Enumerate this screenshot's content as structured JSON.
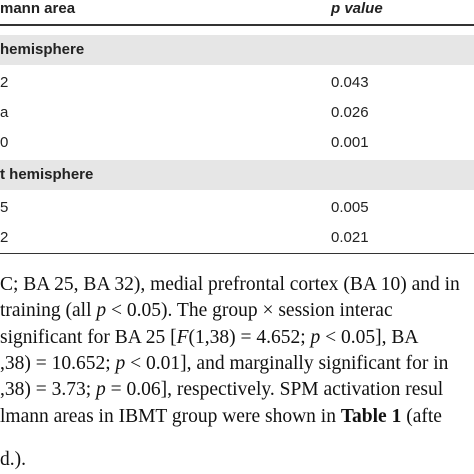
{
  "table": {
    "header": [
      "mann area",
      "p value"
    ],
    "sections": [
      {
        "title": "hemisphere",
        "rows": [
          [
            "2",
            "0.043"
          ],
          [
            "a",
            "0.026"
          ],
          [
            "0",
            "0.001"
          ]
        ]
      },
      {
        "title": "t hemisphere",
        "rows": [
          [
            "5",
            "0.005"
          ],
          [
            "2",
            "0.021"
          ]
        ]
      }
    ]
  },
  "paragraph": {
    "lines": [
      [
        {
          "text": "C; BA 25, BA 32), medial prefrontal cortex (BA 10) and in",
          "style": "normal"
        }
      ],
      [
        {
          "text": " training (all ",
          "style": "normal"
        },
        {
          "text": "p",
          "style": "italic"
        },
        {
          "text": " < 0.05). The group × session interac",
          "style": "normal"
        }
      ],
      [
        {
          "text": "significant for BA 25 [",
          "style": "normal"
        },
        {
          "text": "F",
          "style": "italic"
        },
        {
          "text": "(1,38) = 4.652; ",
          "style": "normal"
        },
        {
          "text": "p",
          "style": "italic"
        },
        {
          "text": " < 0.05], BA",
          "style": "normal"
        }
      ],
      [
        {
          "text": ",38) = 10.652; ",
          "style": "normal"
        },
        {
          "text": "p",
          "style": "italic"
        },
        {
          "text": " < 0.01], and marginally significant for in",
          "style": "normal"
        }
      ],
      [
        {
          "text": ",38) = 3.73; ",
          "style": "normal"
        },
        {
          "text": "p",
          "style": "italic"
        },
        {
          "text": " = 0.06], respectively. SPM activation resul",
          "style": "normal"
        }
      ],
      [
        {
          "text": "lmann areas in IBMT group were shown in ",
          "style": "normal"
        },
        {
          "text": "Table 1",
          "style": "bold"
        },
        {
          "text": " (afte",
          "style": "normal"
        }
      ],
      [
        {
          "text": "d.).",
          "style": "normal"
        }
      ]
    ]
  }
}
